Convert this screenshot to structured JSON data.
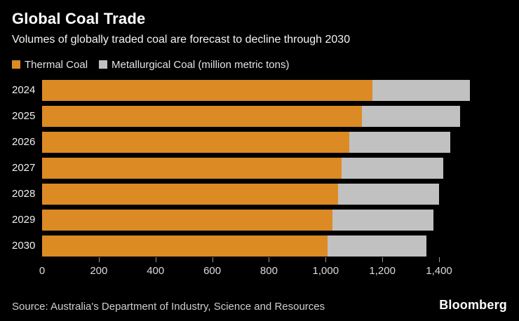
{
  "header": {
    "title": "Global Coal Trade",
    "subtitle": "Volumes of globally traded coal are forecast to decline through 2030"
  },
  "legend": [
    {
      "label": "Thermal Coal",
      "color": "#dc8a23"
    },
    {
      "label": "Metallurgical Coal (million metric tons)",
      "color": "#c1c1c1"
    }
  ],
  "chart_data": {
    "type": "bar",
    "orientation": "horizontal",
    "stacked": true,
    "title": "Global Coal Trade",
    "subtitle": "Volumes of globally traded coal are forecast to decline through 2030",
    "unit": "million metric tons",
    "categories": [
      "2024",
      "2025",
      "2026",
      "2027",
      "2028",
      "2029",
      "2030"
    ],
    "series": [
      {
        "name": "Thermal Coal",
        "color": "#dc8a23",
        "values": [
          1164,
          1128,
          1084,
          1055,
          1043,
          1024,
          1006
        ]
      },
      {
        "name": "Metallurgical Coal",
        "color": "#c1c1c1",
        "values": [
          346,
          346,
          355,
          360,
          357,
          355,
          350
        ]
      }
    ],
    "totals": [
      1510,
      1474,
      1439,
      1415,
      1400,
      1379,
      1356
    ],
    "xlim": [
      0,
      1510
    ],
    "x_ticks": [
      0,
      200,
      400,
      600,
      800,
      1000,
      1200,
      1400
    ],
    "x_tick_labels": [
      "0",
      "200",
      "400",
      "600",
      "800",
      "1,000",
      "1,200",
      "1,400"
    ],
    "legend_position": "top",
    "grid": false
  },
  "footer": {
    "source": "Source: Australia's Department of Industry, Science and Resources",
    "brand": "Bloomberg"
  },
  "colors": {
    "background": "#000000",
    "thermal": "#dc8a23",
    "metallurgical": "#c1c1c1",
    "text_primary": "#ffffff",
    "text_secondary": "#dbdbdb",
    "tick": "#9a9a9a"
  }
}
